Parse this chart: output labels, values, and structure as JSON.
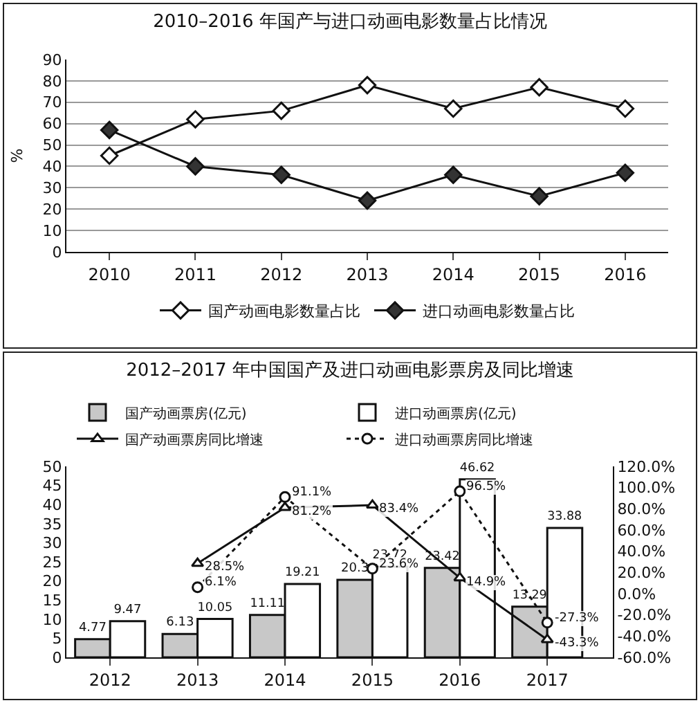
{
  "chart_data": [
    {
      "type": "line",
      "title": "2010–2016 年国产与进口动画电影数量占比情况",
      "ylabel": "%",
      "categories": [
        "2010",
        "2011",
        "2012",
        "2013",
        "2014",
        "2015",
        "2016"
      ],
      "series": [
        {
          "name": "国产动画电影数量占比",
          "color": "#ffffff",
          "values": [
            45,
            62,
            66,
            78,
            67,
            77,
            67
          ]
        },
        {
          "name": "进口动画电影数量占比",
          "color": "#333333",
          "values": [
            57,
            40,
            36,
            24,
            36,
            26,
            37
          ]
        }
      ],
      "ylim": [
        0,
        90
      ],
      "yticks": [
        0,
        10,
        20,
        30,
        40,
        50,
        60,
        70,
        80,
        90
      ],
      "grid": "y",
      "legend": "bottom",
      "marker": "diamond",
      "line_style": "solid"
    },
    {
      "type": "bar",
      "title": "2012–2017 年中国国产及进口动画电影票房及同比增速",
      "categories": [
        "2012",
        "2013",
        "2014",
        "2015",
        "2016",
        "2017"
      ],
      "series": [
        {
          "name": "国产动画票房(亿元)",
          "color": "#c8c8c8",
          "values": [
            4.77,
            6.13,
            11.11,
            20.3,
            23.42,
            13.29
          ]
        },
        {
          "name": "进口动画票房(亿元)",
          "color": "#ffffff",
          "values": [
            9.47,
            10.05,
            19.21,
            23.72,
            46.62,
            33.88
          ]
        },
        {
          "name": "国产动画票房同比增速",
          "type": "line",
          "axis": "y2",
          "color": "#ffffff",
          "marker": "triangle",
          "line_style": "solid",
          "values": [
            null,
            28.5,
            81.2,
            83.4,
            14.9,
            -43.3
          ],
          "value_labels": [
            null,
            "28.5%",
            "81.2%",
            "83.4%",
            "14.9%",
            "-43.3%"
          ]
        },
        {
          "name": "进口动画票房同比增速",
          "type": "line",
          "axis": "y2",
          "color": "#ffffff",
          "marker": "circle",
          "line_style": "dotted",
          "values": [
            null,
            6.1,
            91.1,
            23.6,
            96.5,
            -27.3
          ],
          "value_labels": [
            null,
            "6.1%",
            "91.1%",
            "23.6%",
            "96.5%",
            "-27.3%"
          ]
        }
      ],
      "data_labels": true,
      "legend": "top",
      "grid": false,
      "ylim": [
        0,
        50
      ],
      "yticks": [
        0,
        5,
        10,
        15,
        20,
        25,
        30,
        35,
        40,
        45,
        50
      ],
      "y2lim": [
        -60,
        120
      ],
      "y2ticks": [
        {
          "value": -60,
          "label": "-60.0%"
        },
        {
          "value": -40,
          "label": "-40.0%"
        },
        {
          "value": -20,
          "label": "-20.0%"
        },
        {
          "value": 0,
          "label": "0.0%"
        },
        {
          "value": 20,
          "label": "20.0%"
        },
        {
          "value": 40,
          "label": "40.0%"
        },
        {
          "value": 60,
          "label": "60.0%"
        },
        {
          "value": 80,
          "label": "80.0%"
        },
        {
          "value": 100,
          "label": "100.0%"
        },
        {
          "value": 120,
          "label": "120.0%"
        }
      ]
    }
  ]
}
